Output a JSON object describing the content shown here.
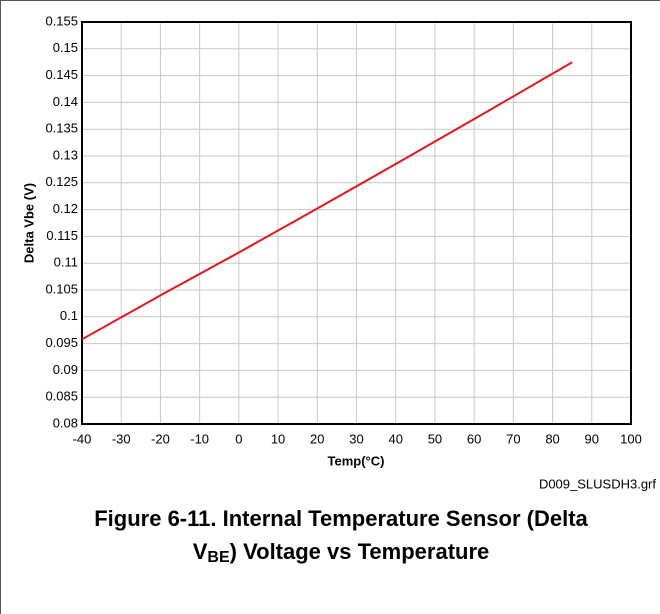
{
  "chart_data": {
    "type": "line",
    "x": [
      -40,
      -20,
      0,
      20,
      40,
      65,
      85
    ],
    "values": [
      0.0958,
      0.104,
      0.112,
      0.1202,
      0.1285,
      0.139,
      0.1475
    ],
    "color": "#e8141c",
    "xlim": [
      -40,
      100
    ],
    "xticks": [
      -40,
      -30,
      -20,
      -10,
      0,
      10,
      20,
      30,
      40,
      50,
      60,
      70,
      80,
      90,
      100
    ],
    "ylim": [
      0.08,
      0.155
    ],
    "yticks": [
      0.08,
      0.085,
      0.09,
      0.095,
      0.1,
      0.105,
      0.11,
      0.115,
      0.12,
      0.125,
      0.13,
      0.135,
      0.14,
      0.145,
      0.15,
      0.155
    ],
    "grid": true,
    "xlabel": "Temp(°C)",
    "ylabel": "Delta Vbe (V)",
    "note": "D009_SLUSDH3.grf",
    "caption": {
      "line1": "Figure 6-11. Internal Temperature Sensor (Delta",
      "v": "V",
      "sub": "BE",
      "rest": ") Voltage vs Temperature"
    }
  }
}
